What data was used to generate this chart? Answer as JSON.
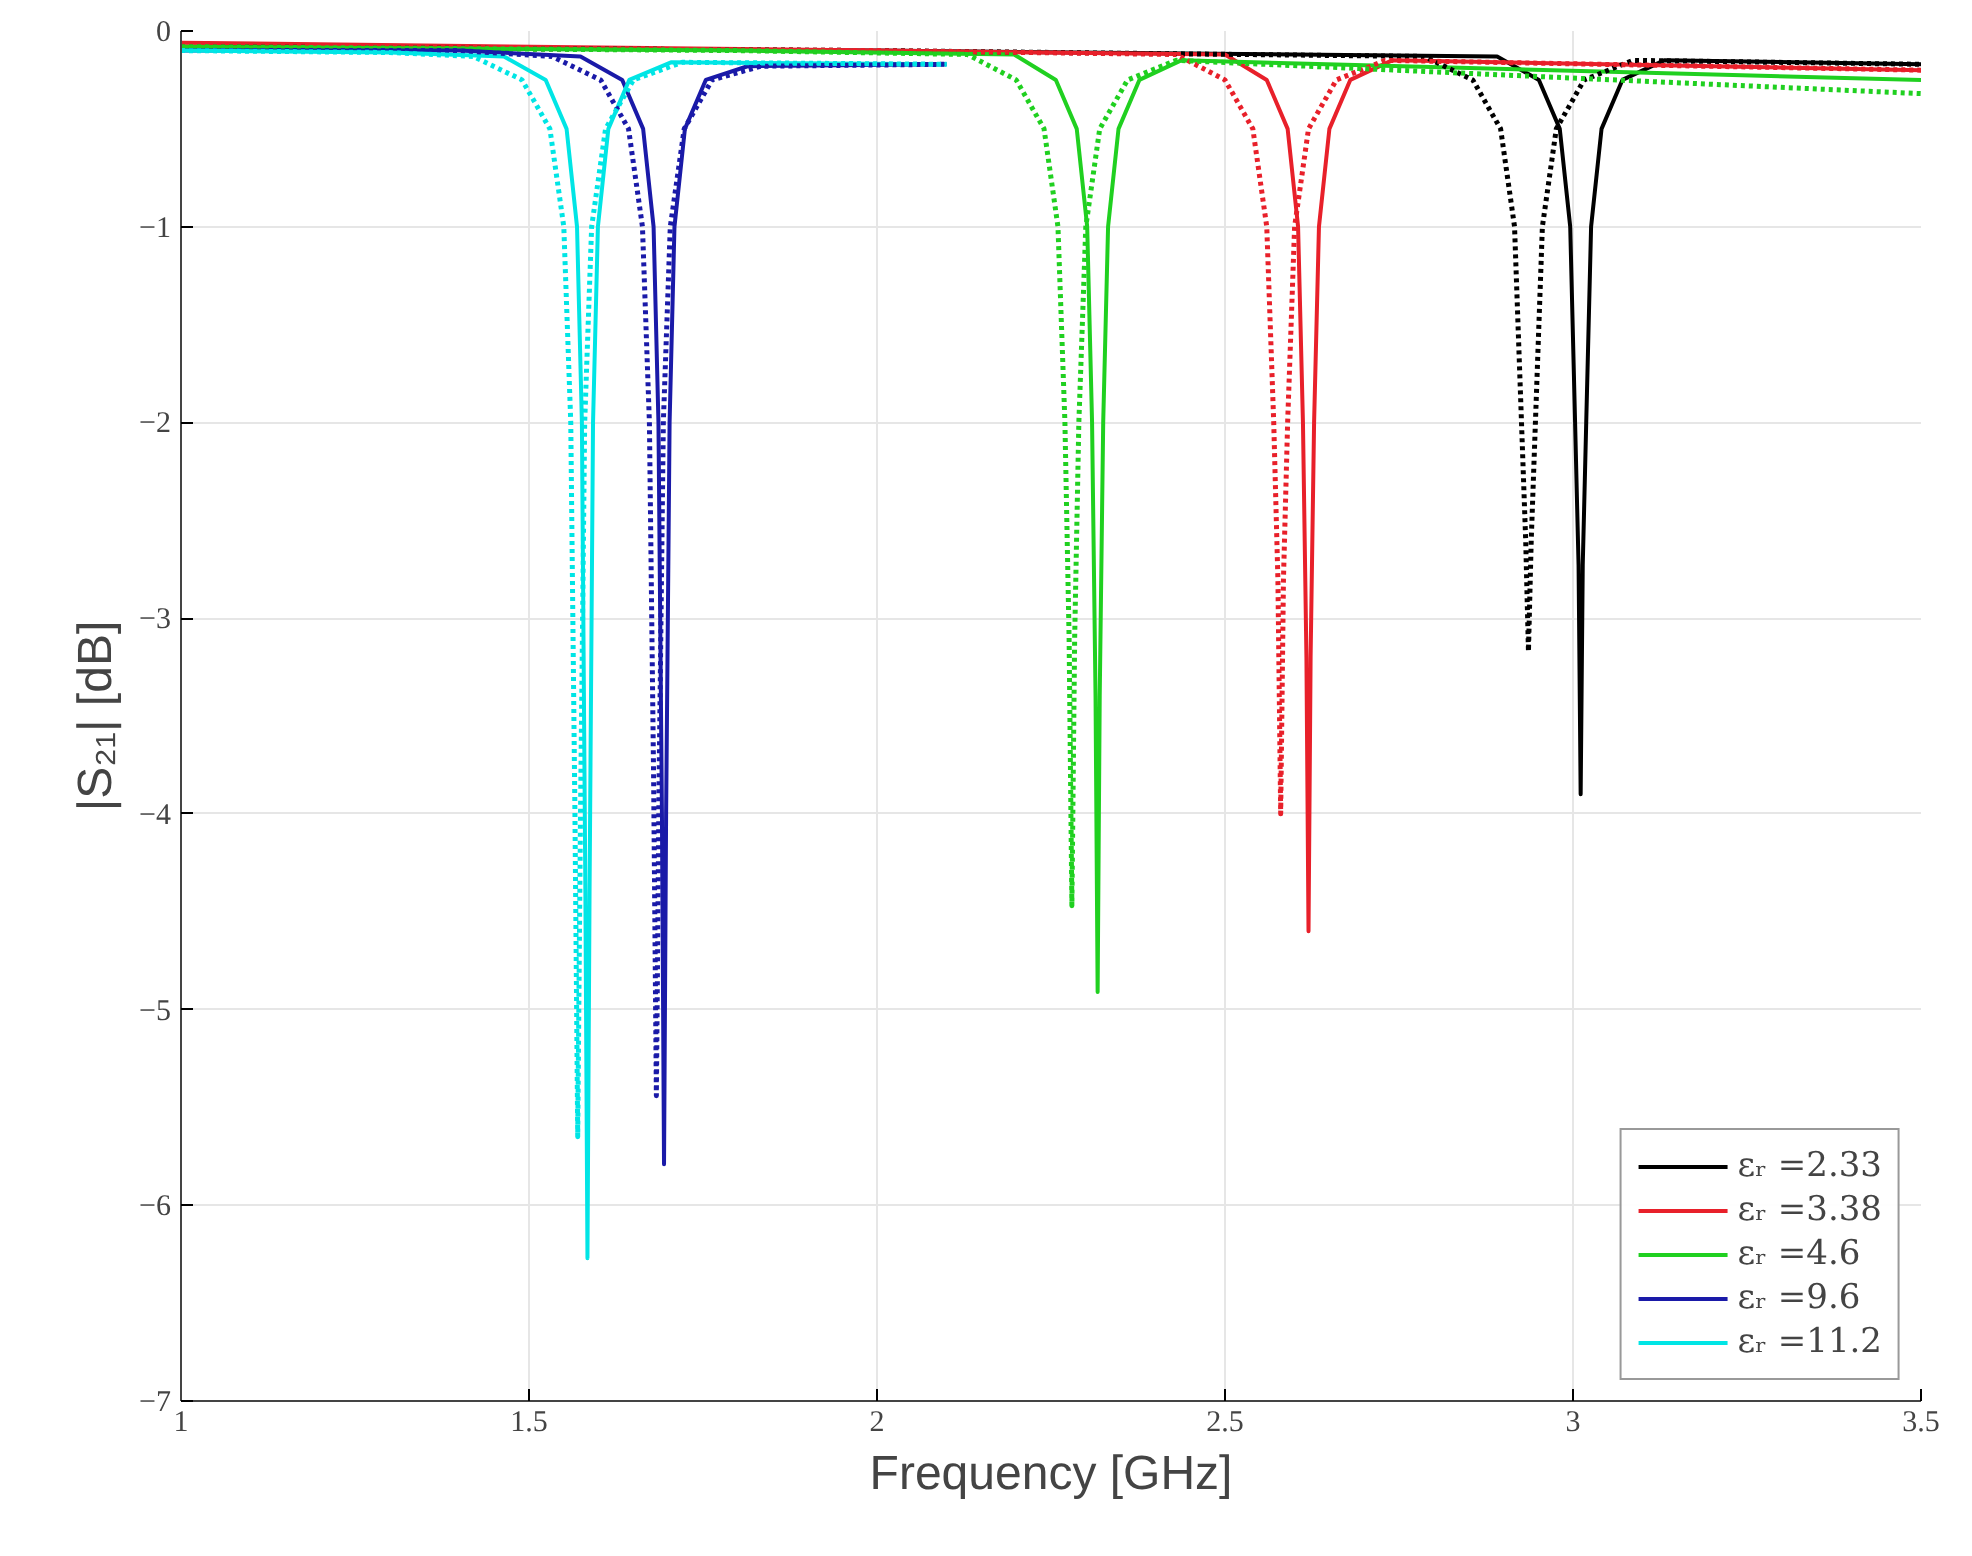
{
  "chart_data": {
    "type": "line",
    "xlabel": "Frequency [GHz]",
    "ylabel": "|S₂₁| [dB]",
    "xlim": [
      1,
      3.5
    ],
    "ylim": [
      -7,
      0
    ],
    "xticks": [
      1,
      1.5,
      2,
      2.5,
      3,
      3.5
    ],
    "yticks": [
      -7,
      -6,
      -5,
      -4,
      -3,
      -2,
      -1,
      0
    ],
    "grid": true,
    "legend": "bottom right",
    "series": [
      {
        "name": "εᵣ =2.33",
        "color": "#000000",
        "line_style": "solid",
        "x": [
          1,
          2.0,
          2.891,
          2.951,
          2.981,
          2.996,
          3.003,
          3.008,
          3.011,
          3.014,
          3.019,
          3.026,
          3.041,
          3.071,
          3.131,
          3.5
        ],
        "values": [
          -0.08,
          -0.1,
          -0.13,
          -0.25,
          -0.5,
          -1.0,
          -2.0,
          -2.73,
          -3.9,
          -2.73,
          -2.0,
          -1.0,
          -0.5,
          -0.25,
          -0.15,
          -0.17
        ]
      },
      {
        "name": "εᵣ =3.38",
        "color": "#e8202a",
        "line_style": "solid",
        "x": [
          1,
          2.0,
          2.5,
          2.56,
          2.59,
          2.605,
          2.612,
          2.617,
          2.62,
          2.623,
          2.628,
          2.635,
          2.65,
          2.68,
          2.74,
          3.5
        ],
        "values": [
          -0.06,
          -0.1,
          -0.12,
          -0.25,
          -0.5,
          -1.0,
          -2.0,
          -3.2,
          -4.6,
          -3.2,
          -2.0,
          -1.0,
          -0.5,
          -0.25,
          -0.15,
          -0.2
        ]
      },
      {
        "name": "εᵣ =4.6",
        "color": "#20d020",
        "line_style": "solid",
        "x": [
          1,
          1.8,
          2.197,
          2.257,
          2.287,
          2.302,
          2.309,
          2.314,
          2.317,
          2.32,
          2.325,
          2.332,
          2.347,
          2.377,
          2.437,
          3.5
        ],
        "values": [
          -0.08,
          -0.1,
          -0.12,
          -0.25,
          -0.5,
          -1.0,
          -2.0,
          -3.4,
          -4.91,
          -3.4,
          -2.0,
          -1.0,
          -0.5,
          -0.25,
          -0.15,
          -0.25
        ]
      },
      {
        "name": "εᵣ =9.6",
        "color": "#1a1aa8",
        "line_style": "solid",
        "x": [
          1,
          1.4,
          1.574,
          1.634,
          1.664,
          1.679,
          1.686,
          1.691,
          1.694,
          1.697,
          1.702,
          1.709,
          1.724,
          1.754,
          1.814,
          2.1
        ],
        "values": [
          -0.1,
          -0.1,
          -0.13,
          -0.25,
          -0.5,
          -1.0,
          -2.0,
          -4.0,
          -5.79,
          -4.0,
          -2.0,
          -1.0,
          -0.5,
          -0.25,
          -0.18,
          -0.17
        ]
      },
      {
        "name": "εᵣ =11.2",
        "color": "#00e5e5",
        "line_style": "solid",
        "x": [
          1,
          1.3,
          1.464,
          1.524,
          1.554,
          1.569,
          1.576,
          1.581,
          1.584,
          1.587,
          1.592,
          1.599,
          1.614,
          1.644,
          1.704,
          2.1
        ],
        "values": [
          -0.1,
          -0.11,
          -0.13,
          -0.25,
          -0.5,
          -1.0,
          -2.0,
          -4.4,
          -6.27,
          -4.4,
          -2.0,
          -1.0,
          -0.5,
          -0.25,
          -0.16,
          -0.17
        ]
      },
      {
        "color": "#000000",
        "line_style": "dotted",
        "x": [
          1,
          2.0,
          2.786,
          2.856,
          2.896,
          2.916,
          2.926,
          2.932,
          2.936,
          2.94,
          2.946,
          2.956,
          2.976,
          3.016,
          3.086,
          3.5
        ],
        "values": [
          -0.08,
          -0.1,
          -0.13,
          -0.25,
          -0.5,
          -1.0,
          -2.0,
          -2.6,
          -3.17,
          -2.6,
          -2.0,
          -1.0,
          -0.5,
          -0.25,
          -0.15,
          -0.17
        ]
      },
      {
        "color": "#e8202a",
        "line_style": "dotted",
        "x": [
          1,
          2.0,
          2.43,
          2.5,
          2.54,
          2.56,
          2.57,
          2.576,
          2.58,
          2.584,
          2.59,
          2.6,
          2.62,
          2.66,
          2.73,
          3.5
        ],
        "values": [
          -0.08,
          -0.1,
          -0.12,
          -0.25,
          -0.5,
          -1.0,
          -2.0,
          -2.8,
          -4.0,
          -2.8,
          -2.0,
          -1.0,
          -0.5,
          -0.25,
          -0.15,
          -0.2
        ]
      },
      {
        "color": "#20d020",
        "line_style": "dotted",
        "x": [
          1,
          1.8,
          2.13,
          2.2,
          2.24,
          2.26,
          2.27,
          2.276,
          2.28,
          2.284,
          2.29,
          2.3,
          2.32,
          2.36,
          2.43,
          3.5
        ],
        "values": [
          -0.08,
          -0.1,
          -0.12,
          -0.25,
          -0.5,
          -1.0,
          -2.0,
          -3.1,
          -4.47,
          -3.1,
          -2.0,
          -1.0,
          -0.5,
          -0.25,
          -0.15,
          -0.32
        ]
      },
      {
        "color": "#1a1aa8",
        "line_style": "dotted",
        "x": [
          1,
          1.4,
          1.533,
          1.603,
          1.643,
          1.663,
          1.673,
          1.679,
          1.683,
          1.687,
          1.693,
          1.703,
          1.723,
          1.763,
          1.833,
          2.1
        ],
        "values": [
          -0.1,
          -0.1,
          -0.13,
          -0.25,
          -0.5,
          -1.0,
          -2.0,
          -3.8,
          -5.44,
          -3.8,
          -2.0,
          -1.0,
          -0.5,
          -0.25,
          -0.18,
          -0.17
        ]
      },
      {
        "color": "#00e5e5",
        "line_style": "dotted",
        "x": [
          1,
          1.3,
          1.42,
          1.49,
          1.53,
          1.55,
          1.56,
          1.566,
          1.57,
          1.574,
          1.58,
          1.59,
          1.61,
          1.65,
          1.72,
          2.1
        ],
        "values": [
          -0.1,
          -0.11,
          -0.13,
          -0.25,
          -0.5,
          -1.0,
          -2.0,
          -4.0,
          -5.65,
          -4.0,
          -2.0,
          -1.0,
          -0.5,
          -0.25,
          -0.16,
          -0.17
        ]
      }
    ]
  }
}
